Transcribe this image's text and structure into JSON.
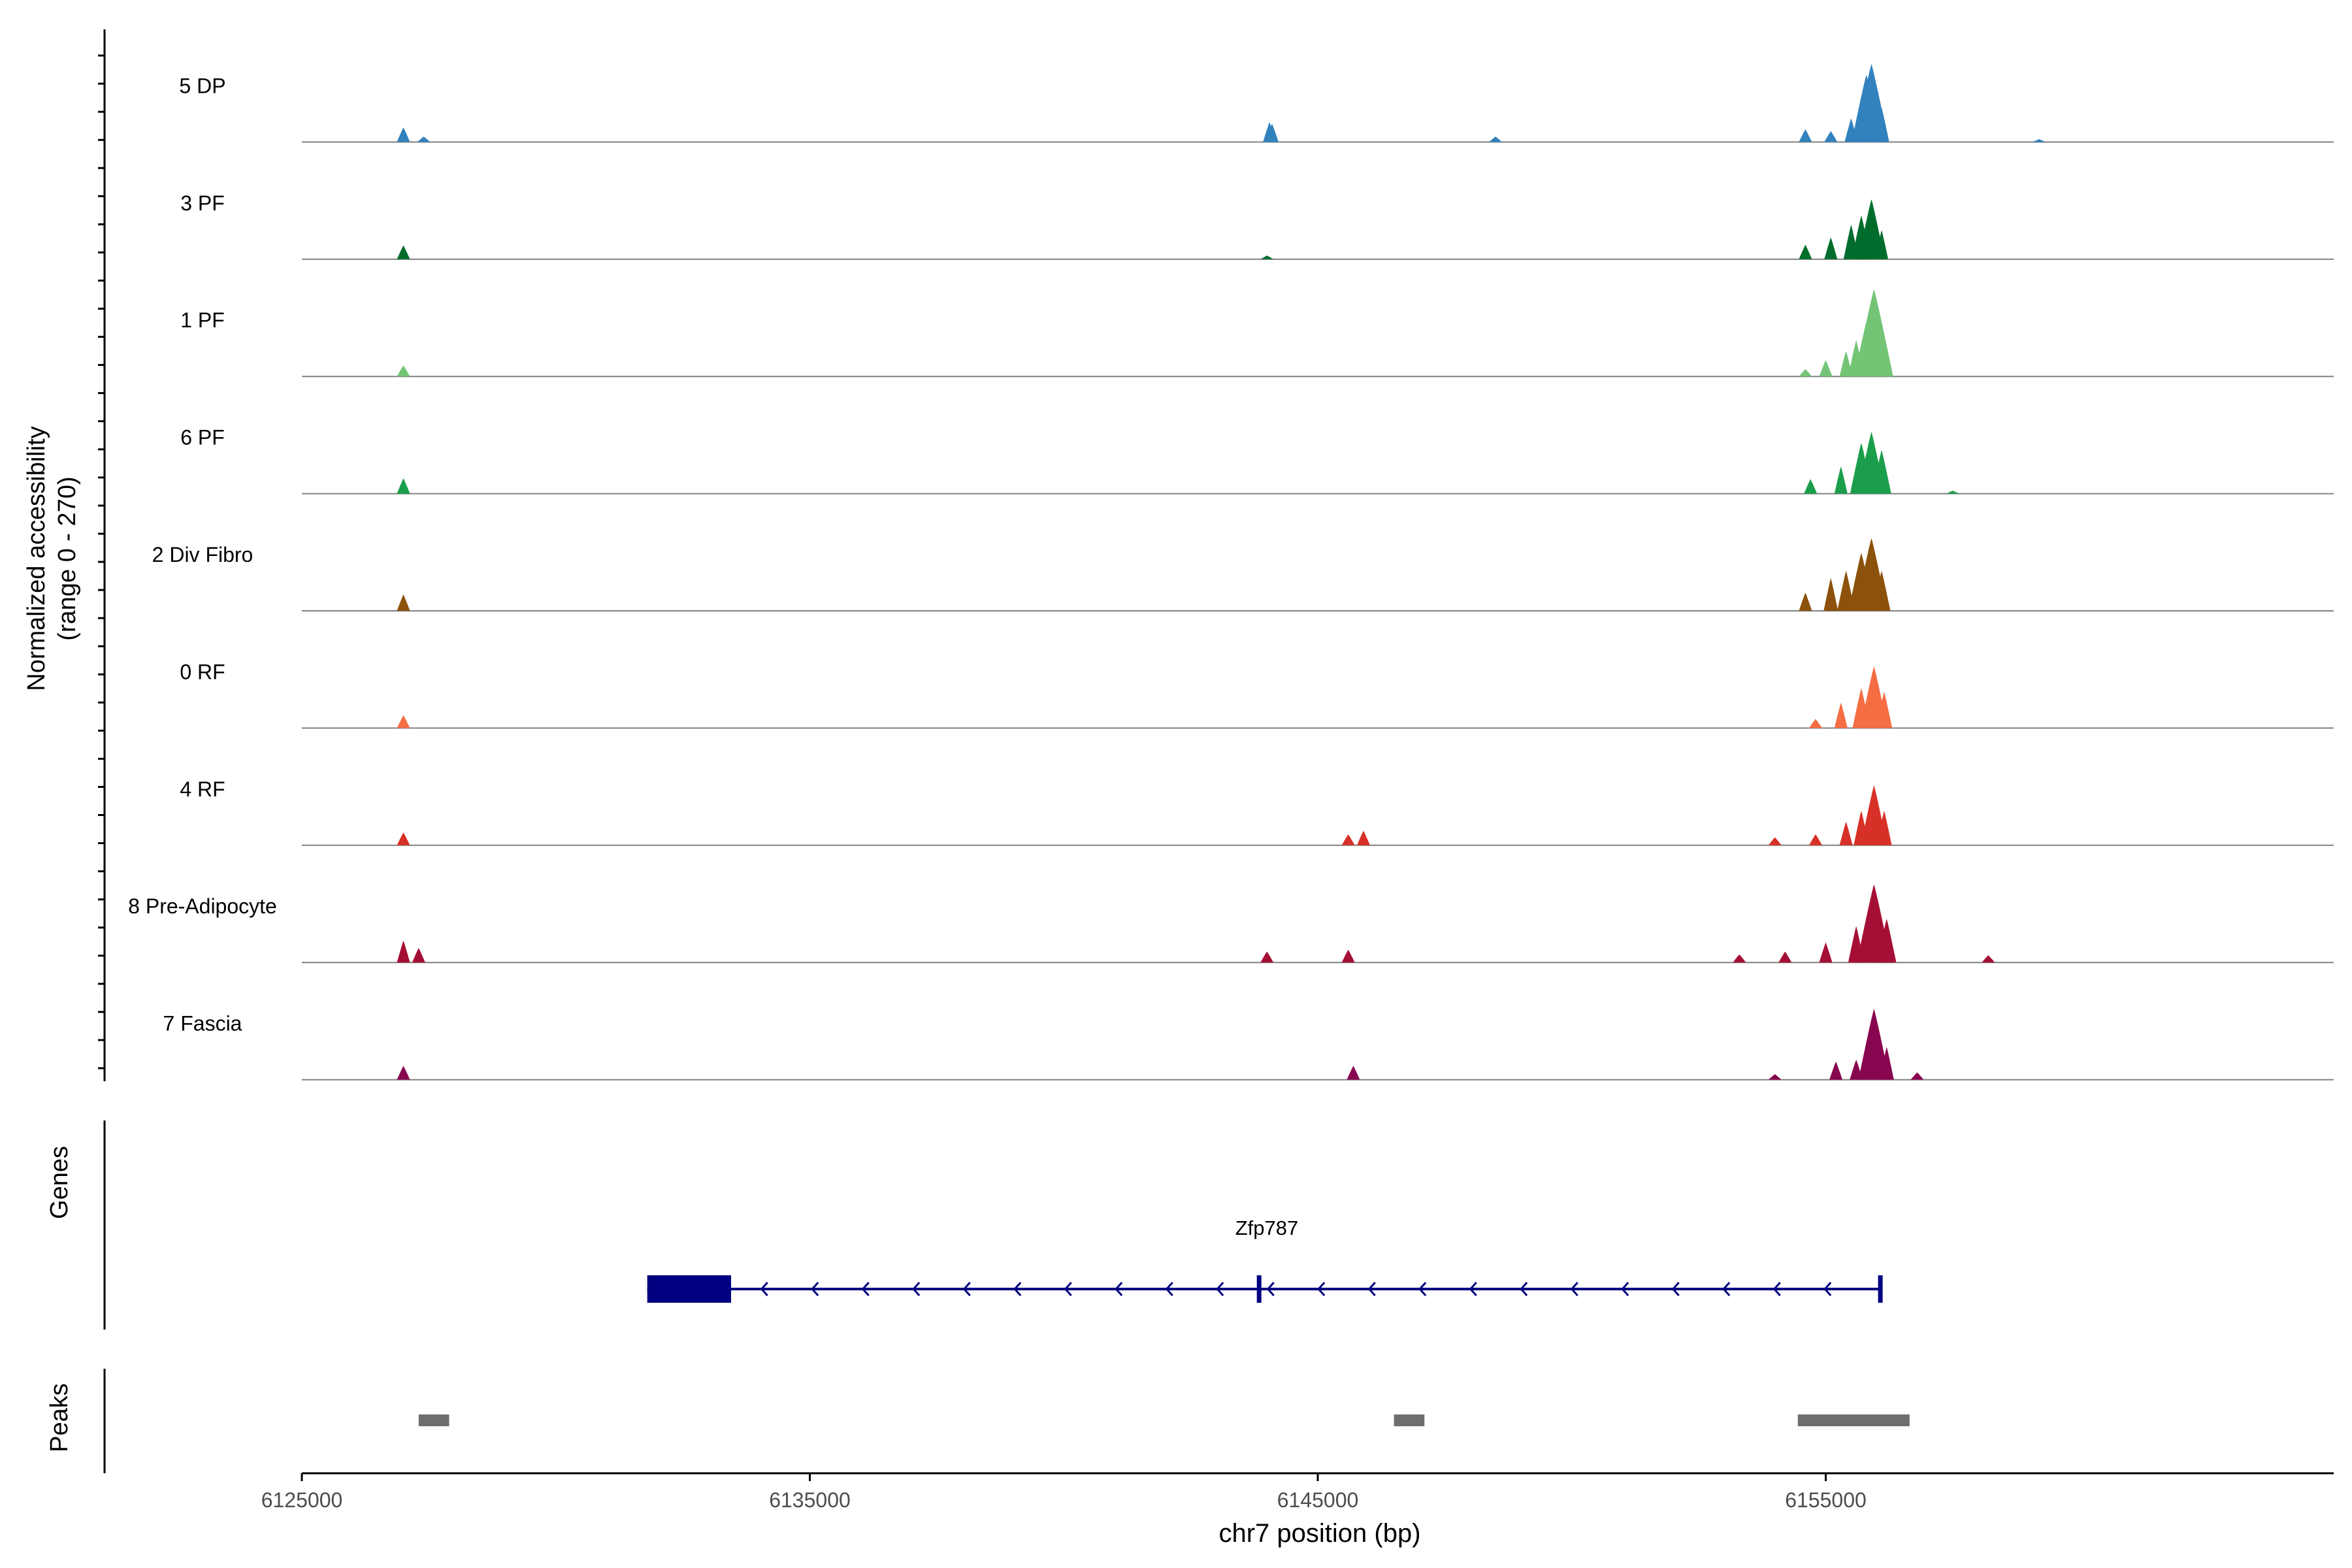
{
  "chart_data": {
    "type": "area",
    "title": "",
    "xlabel": "chr7 position (bp)",
    "ylabel": [
      "Normalized accessibility",
      "(range 0 - 270)"
    ],
    "xlim": [
      6125000,
      6165000
    ],
    "ylim": [
      0,
      270
    ],
    "x_ticks": [
      6125000,
      6135000,
      6145000,
      6155000
    ],
    "x_tick_labels": [
      "6125000",
      "6135000",
      "6145000",
      "6155000"
    ],
    "tracks": [
      {
        "name": "5 DP",
        "color": "#3182bd",
        "x": [
          6127000,
          6127400,
          6144050,
          6144100,
          6148500,
          6154600,
          6155100,
          6155500,
          6155700,
          6155800,
          6155900,
          6156100,
          6159200
        ],
        "values": [
          40,
          15,
          55,
          50,
          15,
          35,
          30,
          65,
          45,
          185,
          215,
          95,
          8
        ]
      },
      {
        "name": "3 PF",
        "color": "#006d2c",
        "x": [
          6127000,
          6144000,
          6154600,
          6155100,
          6155500,
          6155700,
          6155900,
          6156100
        ],
        "values": [
          38,
          10,
          40,
          60,
          95,
          120,
          165,
          80
        ]
      },
      {
        "name": "1 PF",
        "color": "#74c476",
        "x": [
          6127000,
          6154600,
          6155000,
          6155400,
          6155600,
          6155800,
          6155950,
          6156150
        ],
        "values": [
          30,
          20,
          45,
          70,
          100,
          150,
          240,
          100
        ]
      },
      {
        "name": "6 PF",
        "color": "#1b9e4b",
        "x": [
          6127000,
          6154700,
          6155300,
          6155700,
          6155900,
          6156100,
          6157500
        ],
        "values": [
          42,
          40,
          75,
          140,
          170,
          120,
          8
        ]
      },
      {
        "name": "2 Div Fibro",
        "color": "#8c510a",
        "x": [
          6127000,
          6154600,
          6155100,
          6155400,
          6155700,
          6155900,
          6156100
        ],
        "values": [
          45,
          50,
          90,
          110,
          160,
          200,
          110
        ]
      },
      {
        "name": "0 RF",
        "color": "#f46d43",
        "x": [
          6127000,
          6154800,
          6155300,
          6155700,
          6155950,
          6156150
        ],
        "values": [
          35,
          25,
          70,
          110,
          170,
          100
        ]
      },
      {
        "name": "4 RF",
        "color": "#d73027",
        "x": [
          6127000,
          6145600,
          6145900,
          6154000,
          6154800,
          6155400,
          6155700,
          6155950,
          6156150
        ],
        "values": [
          35,
          30,
          40,
          22,
          30,
          65,
          95,
          165,
          95
        ]
      },
      {
        "name": "8 Pre-Adipocyte",
        "color": "#a50f35",
        "x": [
          6127000,
          6127300,
          6144000,
          6145600,
          6153300,
          6154200,
          6155000,
          6155600,
          6155950,
          6156200,
          6158200
        ],
        "values": [
          60,
          40,
          30,
          35,
          22,
          30,
          55,
          100,
          215,
          120,
          20
        ]
      },
      {
        "name": "7 Fascia",
        "color": "#88064f",
        "x": [
          6127000,
          6145700,
          6154000,
          6155200,
          6155600,
          6155950,
          6156200,
          6156800
        ],
        "values": [
          38,
          38,
          15,
          50,
          55,
          195,
          90,
          20
        ]
      }
    ],
    "genes": {
      "label": "Genes",
      "gene_name": "Zfp787",
      "start": 6131800,
      "end": 6156100,
      "strand": "-",
      "exons": [
        [
          6131800,
          6133450
        ],
        [
          6143800,
          6143870
        ],
        [
          6156030,
          6156100
        ]
      ],
      "color": "#000080"
    },
    "peaks": {
      "label": "Peaks",
      "color": "#6e6e6e",
      "regions": [
        [
          6127300,
          6127900
        ],
        [
          6146500,
          6147100
        ],
        [
          6154450,
          6156650
        ]
      ]
    }
  }
}
